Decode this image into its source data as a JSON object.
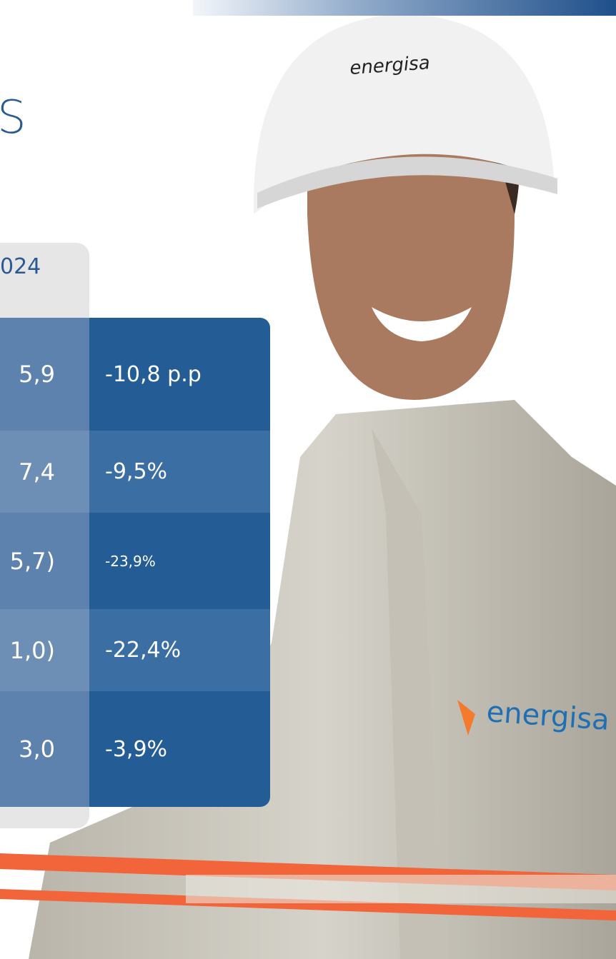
{
  "title": "S",
  "table": {
    "header": "024",
    "rows": [
      [
        "5,9",
        "-10,8 p.p"
      ],
      [
        "7,4",
        "-9,5%"
      ],
      [
        "5,7)",
        "-23,9%"
      ],
      [
        "1,0)",
        "-22,4%"
      ],
      [
        "3,0",
        "-3,9%"
      ]
    ]
  },
  "photo": {
    "helmet_logo": "energisa",
    "jacket_logo": "energisa"
  }
}
